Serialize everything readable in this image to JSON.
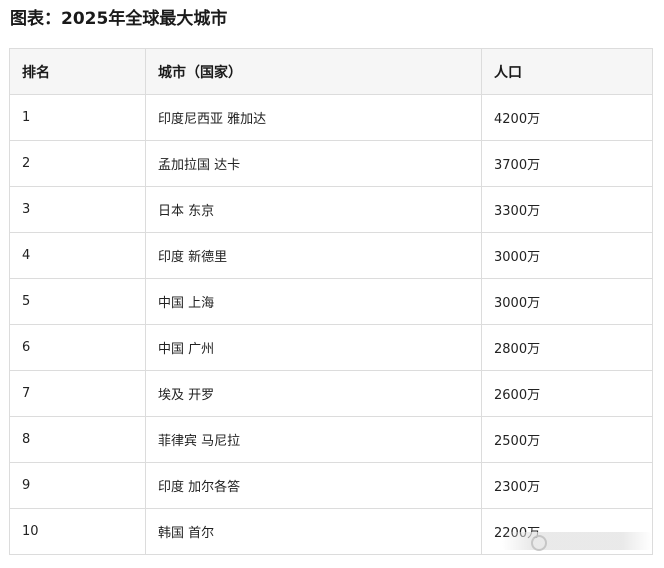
{
  "title": "图表：2025年全球最大城市",
  "table": {
    "headers": {
      "rank": "排名",
      "city": "城市（国家）",
      "population": "人口"
    },
    "rows": [
      {
        "rank": "1",
        "city": "印度尼西亚 雅加达",
        "population": "4200万"
      },
      {
        "rank": "2",
        "city": "孟加拉国 达卡",
        "population": "3700万"
      },
      {
        "rank": "3",
        "city": "日本 东京",
        "population": "3300万"
      },
      {
        "rank": "4",
        "city": "印度 新德里",
        "population": "3000万"
      },
      {
        "rank": "5",
        "city": "中国 上海",
        "population": "3000万"
      },
      {
        "rank": "6",
        "city": "中国 广州",
        "population": "2800万"
      },
      {
        "rank": "7",
        "city": "埃及 开罗",
        "population": "2600万"
      },
      {
        "rank": "8",
        "city": "菲律宾 马尼拉",
        "population": "2500万"
      },
      {
        "rank": "9",
        "city": "印度 加尔各答",
        "population": "2300万"
      },
      {
        "rank": "10",
        "city": "韩国 首尔",
        "population": "2200万"
      }
    ]
  }
}
